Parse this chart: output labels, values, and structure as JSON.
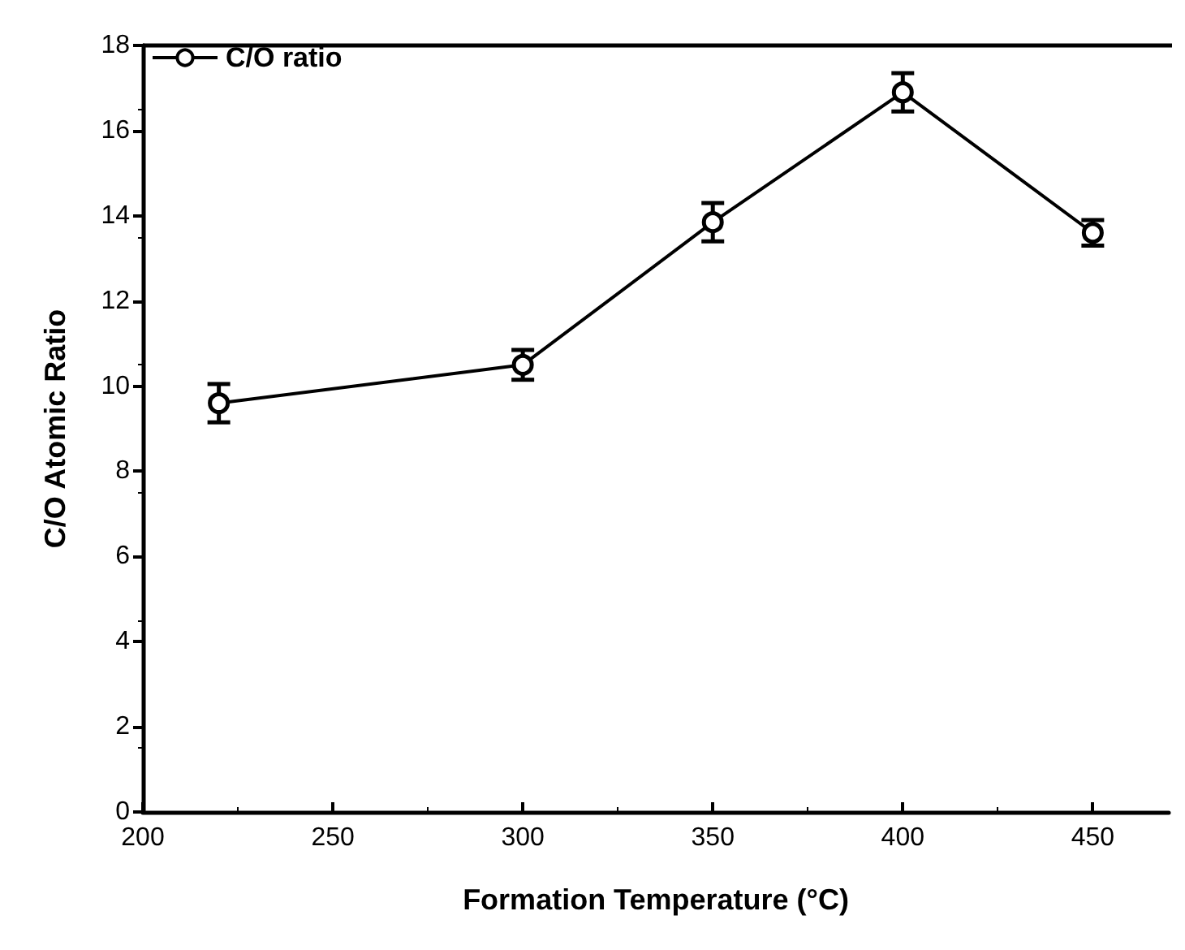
{
  "chart_data": {
    "type": "line",
    "xlabel": "Formation Temperature (°C)",
    "ylabel": "C/O Atomic Ratio",
    "x": [
      220,
      300,
      350,
      400,
      450
    ],
    "series": [
      {
        "name": "C/O ratio",
        "color": "#000000",
        "values": [
          9.6,
          10.5,
          13.85,
          16.9,
          13.6
        ],
        "errors": [
          0.45,
          0.35,
          0.45,
          0.45,
          0.3
        ]
      }
    ],
    "xlim": [
      200,
      470
    ],
    "xticks": [
      200,
      250,
      300,
      350,
      400,
      450
    ],
    "ylim": [
      0,
      18
    ],
    "yticks": [
      0,
      2,
      4,
      6,
      8,
      10,
      12,
      14,
      16,
      18
    ],
    "grid": false,
    "legend": "top left",
    "marker": "circle",
    "line_style": "solid"
  }
}
